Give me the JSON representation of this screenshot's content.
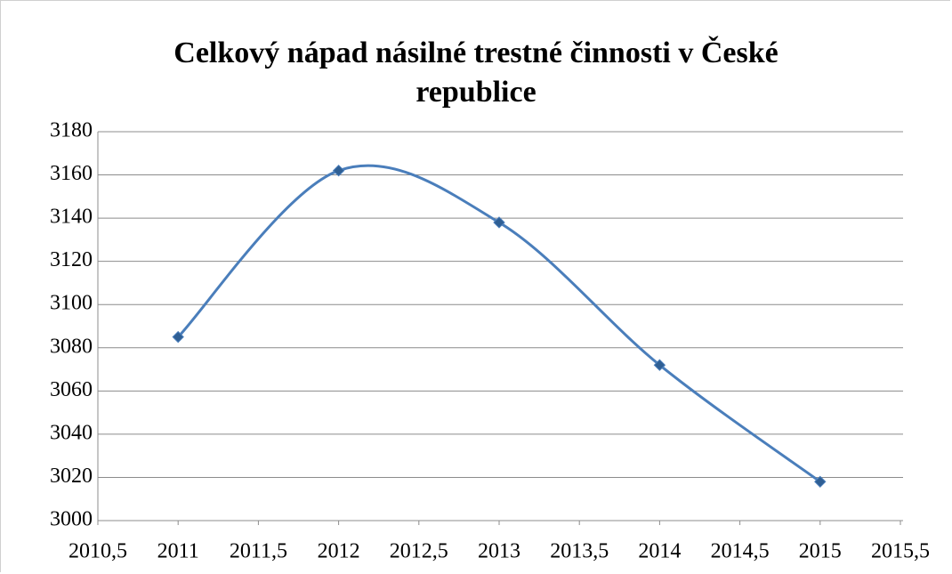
{
  "chart_data": {
    "type": "line",
    "title": "Celkový nápad násilné trestné činnosti v České republice",
    "x": [
      2011,
      2012,
      2013,
      2014,
      2015
    ],
    "series": [
      {
        "color": "#4a7ebb",
        "values": [
          3085,
          3162,
          3138,
          3072,
          3018
        ]
      }
    ],
    "smooth": true,
    "xlim": [
      2010.5,
      2015.5
    ],
    "xticks": [
      {
        "value": 2010.5,
        "label": "2010,5"
      },
      2011,
      {
        "value": 2011.5,
        "label": "2011,5"
      },
      2012,
      {
        "value": 2012.5,
        "label": "2012,5"
      },
      2013,
      {
        "value": 2013.5,
        "label": "2013,5"
      },
      2014,
      {
        "value": 2014.5,
        "label": "2014,5"
      },
      2015,
      {
        "value": 2015.5,
        "label": "2015,5"
      }
    ],
    "ylim": [
      3000,
      3180
    ],
    "yticks": [
      3000,
      3020,
      3040,
      3060,
      3080,
      3100,
      3120,
      3140,
      3160,
      3180
    ],
    "grid": true
  }
}
